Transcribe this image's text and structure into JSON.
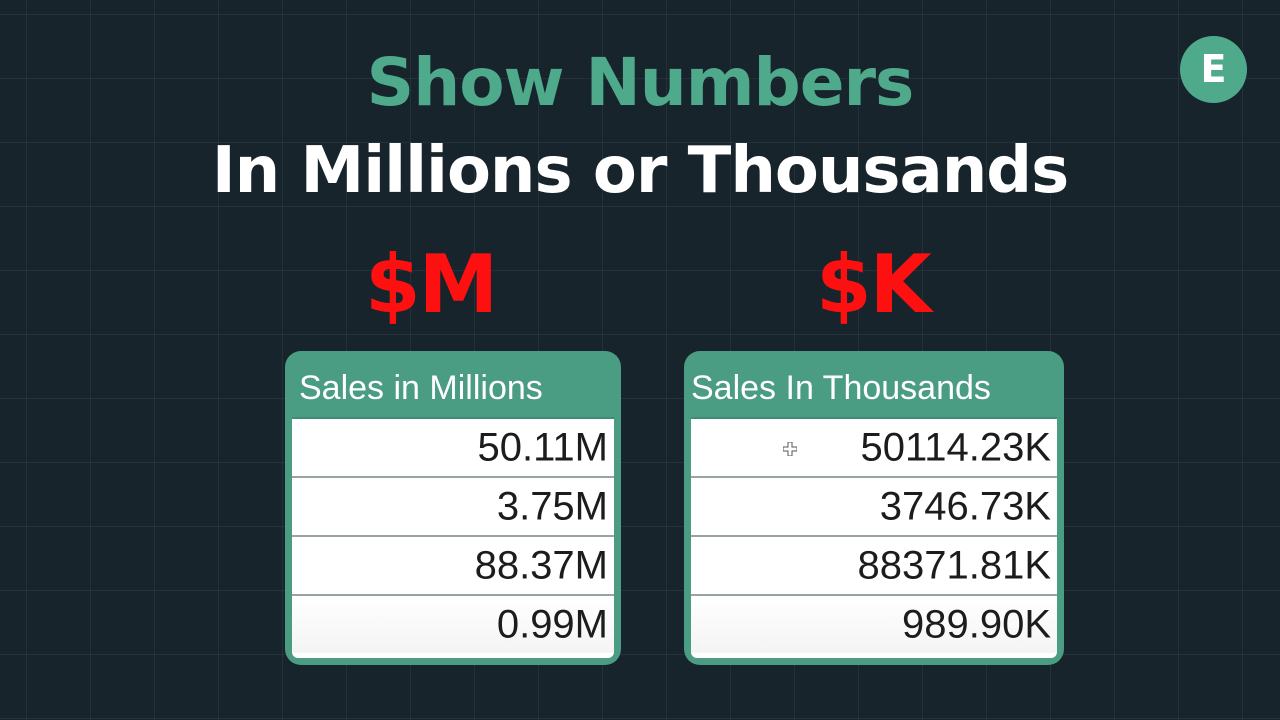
{
  "title": {
    "line1": "Show Numbers",
    "line2": "In Millions or Thousands"
  },
  "labels": {
    "millions": "$M",
    "thousands": "$K"
  },
  "badge": {
    "letter": "E"
  },
  "tables": {
    "millions": {
      "header": "Sales in Millions",
      "values": [
        "50.11M",
        "3.75M",
        "88.37M",
        "0.99M"
      ]
    },
    "thousands": {
      "header": "Sales In Thousands",
      "values": [
        "50114.23K",
        "3746.73K",
        "88371.81K",
        "989.90K"
      ]
    }
  },
  "icons": {
    "cursor": "crosshair-cursor-icon",
    "badge": "logo-badge"
  },
  "colors": {
    "accent": "#4faa8c",
    "accent_dark": "#4a9c82",
    "red": "#ff1010",
    "background": "#17242c"
  }
}
